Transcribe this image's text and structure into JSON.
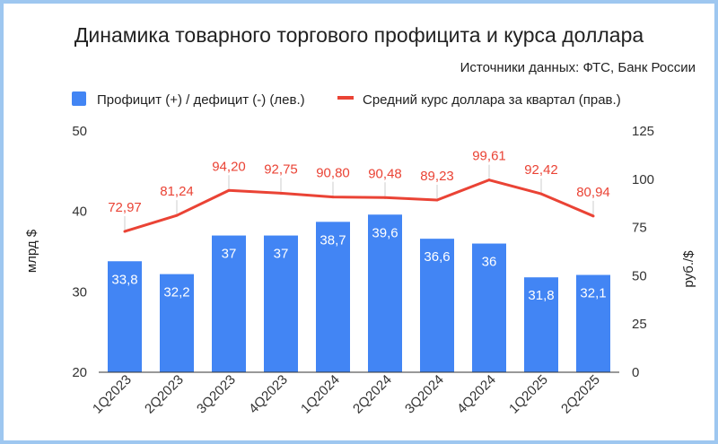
{
  "chart_data": {
    "type": "bar+line",
    "title": "Динамика товарного торгового профицита и курса доллара",
    "subtitle": "Источники данных: ФТС, Банк России",
    "categories": [
      "1Q2023",
      "2Q2023",
      "3Q2023",
      "4Q2023",
      "1Q2024",
      "2Q2024",
      "3Q2024",
      "4Q2024",
      "1Q2025",
      "2Q2025"
    ],
    "series": [
      {
        "name": "Профицит (+) / дефицит (-) (лев.)",
        "type": "bar",
        "axis": "left",
        "color": "#4285f4",
        "values": [
          33.8,
          32.2,
          37,
          37,
          38.7,
          39.6,
          36.6,
          36,
          31.8,
          32.1
        ],
        "labels": [
          "33,8",
          "32,2",
          "37",
          "37",
          "38,7",
          "39,6",
          "36,6",
          "36",
          "31,8",
          "32,1"
        ]
      },
      {
        "name": "Средний курс доллара за квартал (прав.)",
        "type": "line",
        "axis": "right",
        "color": "#ea4335",
        "values": [
          72.97,
          81.24,
          94.2,
          92.75,
          90.8,
          90.48,
          89.23,
          99.61,
          92.42,
          80.94
        ],
        "labels": [
          "72,97",
          "81,24",
          "94,20",
          "92,75",
          "90,80",
          "90,48",
          "89,23",
          "99,61",
          "92,42",
          "80,94"
        ]
      }
    ],
    "y_left": {
      "label": "млрд $",
      "range": [
        20,
        50
      ],
      "ticks": [
        20,
        30,
        40,
        50
      ]
    },
    "y_right": {
      "label": "руб./$",
      "range": [
        0,
        125
      ],
      "ticks": [
        0,
        25,
        50,
        75,
        100,
        125
      ]
    },
    "legend_position": "top",
    "grid": false
  }
}
